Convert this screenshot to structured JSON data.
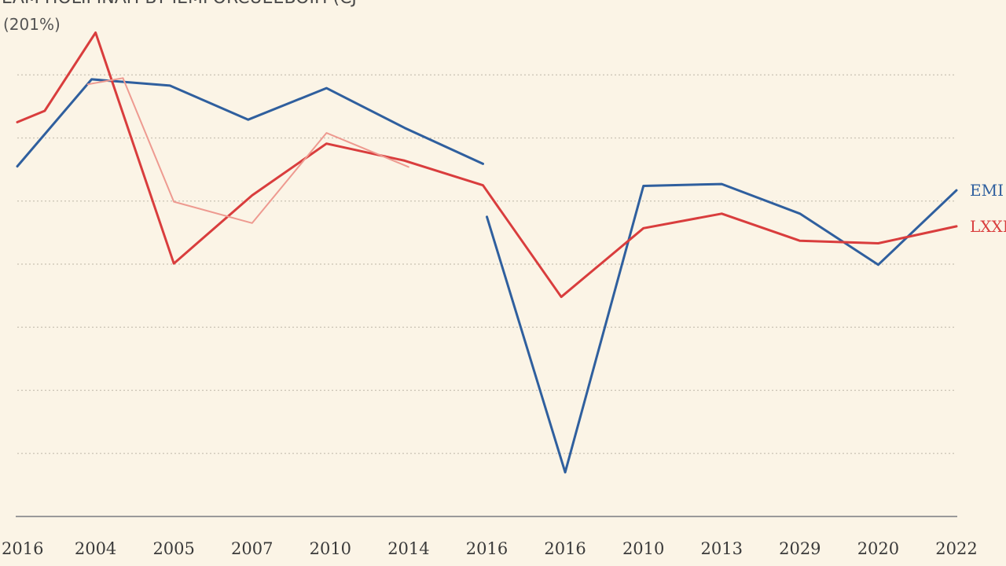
{
  "chart_data": {
    "type": "line",
    "title": "EAM HOLIPINAH BY IEMFORCUEEBOIH (CJ",
    "subtitle": "(201%)",
    "xlabel": "",
    "ylabel": "",
    "categories": [
      "2016",
      "2004",
      "2005",
      "2007",
      "2010",
      "2014",
      "2016",
      "2016",
      "2010",
      "2013",
      "2029",
      "2020",
      "2022"
    ],
    "ylim": [
      0,
      80
    ],
    "grid": true,
    "series": [
      {
        "name": "EMI",
        "color": "#2f5f9e",
        "segments": [
          {
            "x": [
              0,
              0.95,
              1.95,
              2.95,
              3.95,
              4.95,
              5.95
            ],
            "y": [
              55.5,
              69.3,
              68.3,
              62.9,
              67.9,
              61.6,
              55.9
            ]
          },
          {
            "x": [
              6.0,
              7.0,
              8.0,
              9.0,
              10.0,
              11.0,
              12.0
            ],
            "y": [
              47.5,
              7.0,
              52.4,
              52.7,
              48.0,
              39.9,
              51.7
            ]
          }
        ]
      },
      {
        "name": "LXXI",
        "color": "#d93d3d",
        "segments": [
          {
            "x": [
              0,
              0.35,
              1.0,
              2.0,
              3.0,
              3.95,
              4.95,
              5.95,
              6.95,
              8.0,
              9.0,
              10.0,
              11.0,
              12.0
            ],
            "y": [
              62.5,
              64.3,
              76.7,
              40.1,
              50.9,
              59.1,
              56.4,
              52.5,
              34.8,
              45.7,
              48.0,
              43.7,
              43.3,
              46.0
            ]
          }
        ]
      },
      {
        "name": "",
        "color": "#ee9a90",
        "segments": [
          {
            "x": [
              0.9,
              1.35,
              2.0,
              3.0,
              3.95,
              5.0
            ],
            "y": [
              68.5,
              69.5,
              49.9,
              46.5,
              60.8,
              55.4
            ]
          }
        ]
      }
    ],
    "legend_labels": [
      {
        "text": "EMI",
        "series": 0
      },
      {
        "text": "LXXI",
        "series": 1
      }
    ]
  }
}
